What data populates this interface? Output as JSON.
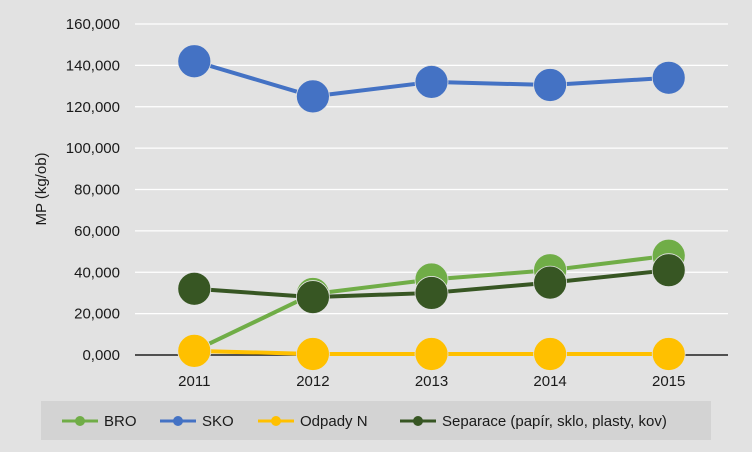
{
  "chart_data": {
    "type": "line",
    "ylabel": "MP (kg/ob)",
    "xlabel": "",
    "categories": [
      "2011",
      "2012",
      "2013",
      "2014",
      "2015"
    ],
    "ylim": [
      0,
      160000
    ],
    "yticks": [
      0,
      20000,
      40000,
      60000,
      80000,
      100000,
      120000,
      140000,
      160000
    ],
    "ytick_labels": [
      "0,000",
      "20,000",
      "40,000",
      "60,000",
      "80,000",
      "100,000",
      "120,000",
      "140,000",
      "160,000"
    ],
    "grid": true,
    "legend_position": "bottom",
    "background_color": "#e2e2e2",
    "series": [
      {
        "name": "BRO",
        "color": "#70ad47",
        "values": [
          2000,
          29500,
          36500,
          41000,
          48000
        ]
      },
      {
        "name": "SKO",
        "color": "#4472c4",
        "values": [
          142000,
          125000,
          132000,
          130500,
          134000
        ]
      },
      {
        "name": "Odpady N",
        "color": "#ffc000",
        "values": [
          2000,
          500,
          500,
          500,
          500
        ]
      },
      {
        "name": "Separace (papír, sklo, plasty, kov)",
        "color": "#375623",
        "values": [
          32000,
          28000,
          30000,
          35000,
          41000
        ]
      }
    ]
  }
}
